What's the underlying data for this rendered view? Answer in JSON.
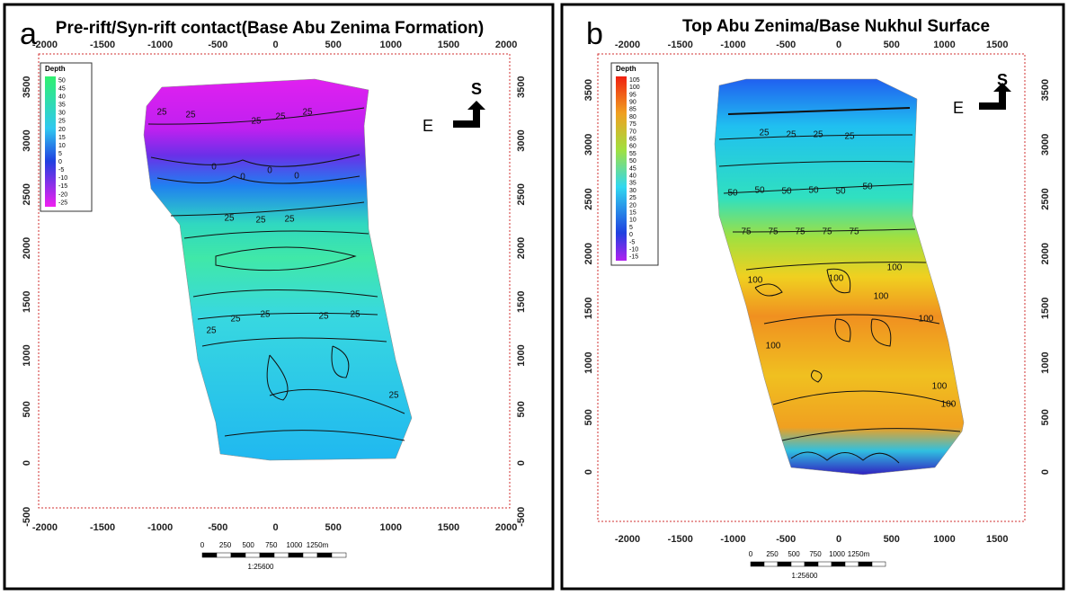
{
  "panels": [
    {
      "label": "a",
      "title": "Pre-rift/Syn-rift contact(Base Abu Zenima Formation)",
      "x_ticks": [
        "-2000",
        "-1500",
        "-1000",
        "-500",
        "0",
        "500",
        "1000",
        "1500",
        "2000"
      ],
      "y_ticks": [
        "-500",
        "0",
        "500",
        "1000",
        "1500",
        "2000",
        "2500",
        "3000",
        "3500"
      ],
      "legend": {
        "title": "Depth",
        "labels": [
          "50",
          "45",
          "40",
          "35",
          "30",
          "25",
          "20",
          "15",
          "10",
          "5",
          "0",
          "-5",
          "-10",
          "-15",
          "-20",
          "-25"
        ]
      },
      "scale_bar": {
        "labels": [
          "0",
          "250",
          "500",
          "750",
          "1000",
          "1250m"
        ],
        "ratio": "1:25600"
      },
      "arrow": {
        "s": "S",
        "e": "E"
      },
      "contour_labels": [
        "25",
        "25",
        "25",
        "25",
        "25",
        "0",
        "0",
        "0",
        "0",
        "25",
        "25",
        "25",
        "25",
        "25",
        "25",
        "25",
        "25",
        "25"
      ]
    },
    {
      "label": "b",
      "title": "Top Abu Zenima/Base Nukhul Surface",
      "x_ticks": [
        "-2000",
        "-1500",
        "-1000",
        "-500",
        "0",
        "500",
        "1000",
        "1500"
      ],
      "y_ticks": [
        "0",
        "500",
        "1000",
        "1500",
        "2000",
        "2500",
        "3000",
        "3500"
      ],
      "legend": {
        "title": "Depth",
        "labels": [
          "105",
          "100",
          "95",
          "90",
          "85",
          "80",
          "75",
          "70",
          "65",
          "60",
          "55",
          "50",
          "45",
          "40",
          "35",
          "30",
          "25",
          "20",
          "15",
          "10",
          "5",
          "0",
          "-5",
          "-10",
          "-15"
        ]
      },
      "scale_bar": {
        "labels": [
          "0",
          "250",
          "500",
          "750",
          "1000",
          "1250m"
        ],
        "ratio": "1:25600"
      },
      "arrow": {
        "s": "S",
        "e": "E"
      },
      "contour_labels": [
        "25",
        "25",
        "25",
        "25",
        "50",
        "50",
        "50",
        "50",
        "50",
        "50",
        "75",
        "75",
        "75",
        "75",
        "75",
        "100",
        "100",
        "100",
        "100",
        "100",
        "100",
        "100",
        "100"
      ]
    }
  ]
}
